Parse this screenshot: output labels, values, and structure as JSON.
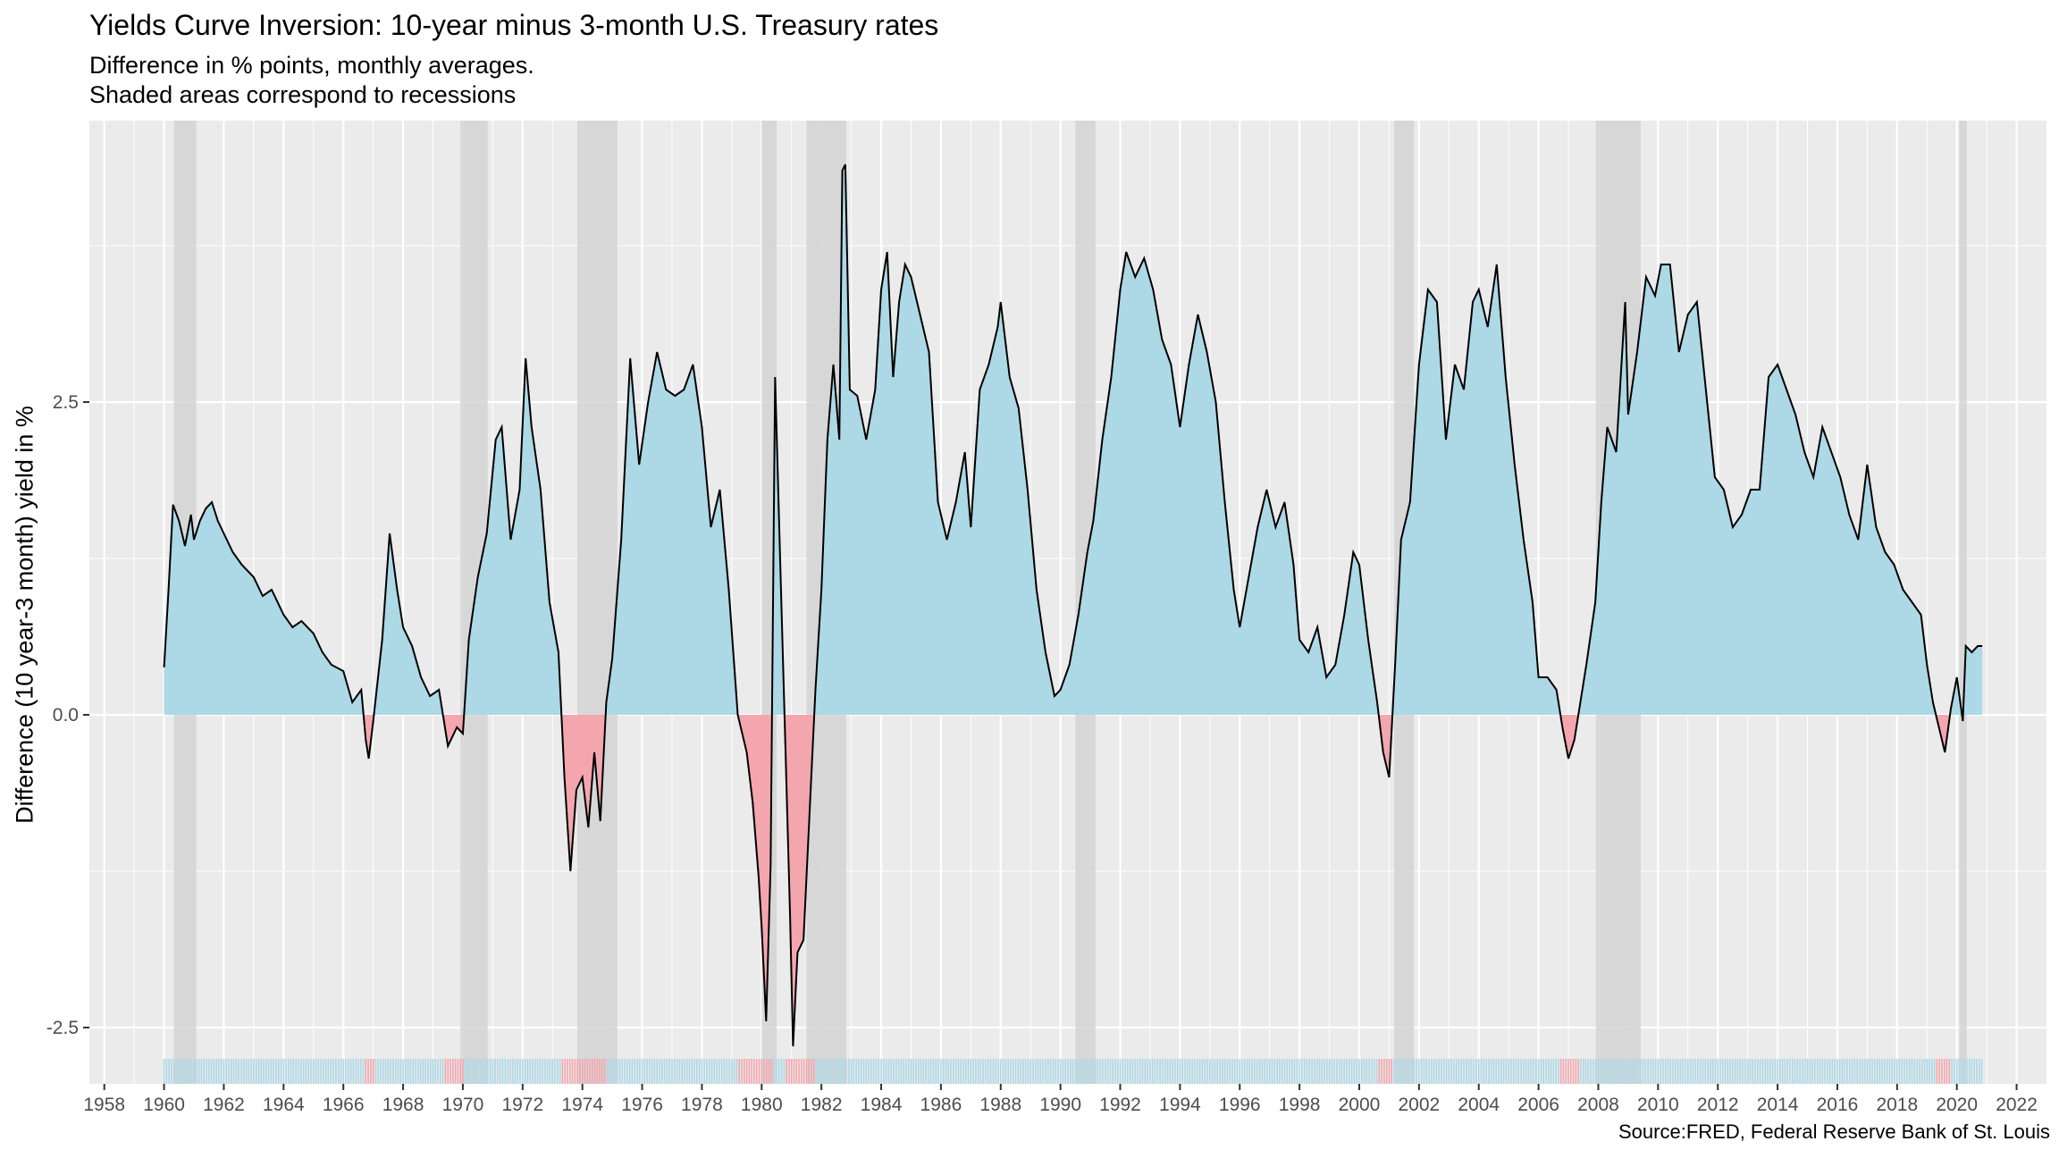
{
  "chart_data": {
    "type": "area",
    "title": "Yields Curve Inversion: 10-year minus 3-month U.S. Treasury rates",
    "subtitle": [
      "Difference in % points, monthly averages.",
      "Shaded areas correspond to recessions"
    ],
    "xlabel": "",
    "ylabel": "Difference (10 year-3 month) yield in %",
    "caption": "Source:FRED, Federal Reserve Bank of St. Louis",
    "xlim": [
      1957.5,
      2023.0
    ],
    "ylim": [
      -2.95,
      4.75
    ],
    "x_ticks": [
      1958,
      1960,
      1962,
      1964,
      1966,
      1968,
      1970,
      1972,
      1974,
      1976,
      1978,
      1980,
      1982,
      1984,
      1986,
      1988,
      1990,
      1992,
      1994,
      1996,
      1998,
      2000,
      2002,
      2004,
      2006,
      2008,
      2010,
      2012,
      2014,
      2016,
      2018,
      2020,
      2022
    ],
    "y_ticks": [
      -2.5,
      0.0,
      2.5
    ],
    "y_tick_labels": [
      "-2.5",
      "0.0",
      "2.5"
    ],
    "grid": true,
    "colors": {
      "panel": "#ebebeb",
      "grid": "#ffffff",
      "positive_fill": "#add8e6",
      "negative_fill": "#f4a6ae",
      "recession": "#d3d3d3",
      "line": "#000000"
    },
    "recessions": [
      [
        1960.33,
        1961.08
      ],
      [
        1969.92,
        1970.83
      ],
      [
        1973.83,
        1975.17
      ],
      [
        1980.0,
        1980.5
      ],
      [
        1981.5,
        1982.83
      ],
      [
        1990.5,
        1991.17
      ],
      [
        2001.17,
        2001.83
      ],
      [
        2007.92,
        2009.42
      ],
      [
        2020.08,
        2020.33
      ]
    ],
    "series": [
      {
        "values": [
          [
            1960.0,
            0.38
          ],
          [
            1960.15,
            1.0
          ],
          [
            1960.3,
            1.68
          ],
          [
            1960.5,
            1.55
          ],
          [
            1960.7,
            1.35
          ],
          [
            1960.9,
            1.6
          ],
          [
            1961.0,
            1.4
          ],
          [
            1961.2,
            1.55
          ],
          [
            1961.4,
            1.65
          ],
          [
            1961.6,
            1.7
          ],
          [
            1961.8,
            1.55
          ],
          [
            1962.0,
            1.45
          ],
          [
            1962.3,
            1.3
          ],
          [
            1962.6,
            1.2
          ],
          [
            1963.0,
            1.1
          ],
          [
            1963.3,
            0.95
          ],
          [
            1963.6,
            1.0
          ],
          [
            1964.0,
            0.8
          ],
          [
            1964.3,
            0.7
          ],
          [
            1964.6,
            0.75
          ],
          [
            1965.0,
            0.65
          ],
          [
            1965.3,
            0.5
          ],
          [
            1965.6,
            0.4
          ],
          [
            1966.0,
            0.35
          ],
          [
            1966.3,
            0.1
          ],
          [
            1966.6,
            0.2
          ],
          [
            1966.75,
            -0.2
          ],
          [
            1966.85,
            -0.35
          ],
          [
            1967.0,
            -0.05
          ],
          [
            1967.3,
            0.6
          ],
          [
            1967.55,
            1.45
          ],
          [
            1967.8,
            1.0
          ],
          [
            1968.0,
            0.7
          ],
          [
            1968.3,
            0.55
          ],
          [
            1968.6,
            0.3
          ],
          [
            1968.9,
            0.15
          ],
          [
            1969.2,
            0.2
          ],
          [
            1969.5,
            -0.25
          ],
          [
            1969.8,
            -0.1
          ],
          [
            1970.0,
            -0.15
          ],
          [
            1970.2,
            0.6
          ],
          [
            1970.5,
            1.1
          ],
          [
            1970.8,
            1.45
          ],
          [
            1971.1,
            2.2
          ],
          [
            1971.3,
            2.3
          ],
          [
            1971.6,
            1.4
          ],
          [
            1971.9,
            1.8
          ],
          [
            1972.1,
            2.85
          ],
          [
            1972.3,
            2.3
          ],
          [
            1972.6,
            1.8
          ],
          [
            1972.9,
            0.9
          ],
          [
            1973.2,
            0.5
          ],
          [
            1973.4,
            -0.5
          ],
          [
            1973.6,
            -1.25
          ],
          [
            1973.8,
            -0.6
          ],
          [
            1974.0,
            -0.5
          ],
          [
            1974.2,
            -0.9
          ],
          [
            1974.4,
            -0.3
          ],
          [
            1974.6,
            -0.85
          ],
          [
            1974.8,
            0.1
          ],
          [
            1975.0,
            0.45
          ],
          [
            1975.3,
            1.4
          ],
          [
            1975.6,
            2.85
          ],
          [
            1975.9,
            2.0
          ],
          [
            1976.2,
            2.5
          ],
          [
            1976.5,
            2.9
          ],
          [
            1976.8,
            2.6
          ],
          [
            1977.1,
            2.55
          ],
          [
            1977.4,
            2.6
          ],
          [
            1977.7,
            2.8
          ],
          [
            1978.0,
            2.3
          ],
          [
            1978.3,
            1.5
          ],
          [
            1978.6,
            1.8
          ],
          [
            1978.9,
            1.0
          ],
          [
            1979.2,
            0.0
          ],
          [
            1979.5,
            -0.3
          ],
          [
            1979.7,
            -0.7
          ],
          [
            1979.9,
            -1.3
          ],
          [
            1980.0,
            -1.7
          ],
          [
            1980.15,
            -2.45
          ],
          [
            1980.3,
            -1.2
          ],
          [
            1980.45,
            2.7
          ],
          [
            1980.6,
            1.4
          ],
          [
            1980.8,
            -0.3
          ],
          [
            1980.95,
            -1.6
          ],
          [
            1981.05,
            -2.65
          ],
          [
            1981.2,
            -1.9
          ],
          [
            1981.4,
            -1.8
          ],
          [
            1981.6,
            -0.8
          ],
          [
            1981.8,
            0.2
          ],
          [
            1982.0,
            1.0
          ],
          [
            1982.2,
            2.2
          ],
          [
            1982.4,
            2.8
          ],
          [
            1982.6,
            2.2
          ],
          [
            1982.7,
            4.35
          ],
          [
            1982.8,
            4.4
          ],
          [
            1982.95,
            2.6
          ],
          [
            1983.2,
            2.55
          ],
          [
            1983.5,
            2.2
          ],
          [
            1983.8,
            2.6
          ],
          [
            1984.0,
            3.4
          ],
          [
            1984.2,
            3.7
          ],
          [
            1984.4,
            2.7
          ],
          [
            1984.6,
            3.3
          ],
          [
            1984.8,
            3.6
          ],
          [
            1985.0,
            3.5
          ],
          [
            1985.3,
            3.2
          ],
          [
            1985.6,
            2.9
          ],
          [
            1985.9,
            1.7
          ],
          [
            1986.2,
            1.4
          ],
          [
            1986.5,
            1.7
          ],
          [
            1986.8,
            2.1
          ],
          [
            1987.0,
            1.5
          ],
          [
            1987.3,
            2.6
          ],
          [
            1987.6,
            2.8
          ],
          [
            1987.9,
            3.1
          ],
          [
            1988.0,
            3.3
          ],
          [
            1988.3,
            2.7
          ],
          [
            1988.6,
            2.45
          ],
          [
            1988.9,
            1.8
          ],
          [
            1989.2,
            1.0
          ],
          [
            1989.5,
            0.5
          ],
          [
            1989.8,
            0.15
          ],
          [
            1990.0,
            0.2
          ],
          [
            1990.3,
            0.4
          ],
          [
            1990.6,
            0.8
          ],
          [
            1990.9,
            1.3
          ],
          [
            1991.1,
            1.55
          ],
          [
            1991.4,
            2.2
          ],
          [
            1991.7,
            2.7
          ],
          [
            1992.0,
            3.4
          ],
          [
            1992.2,
            3.7
          ],
          [
            1992.5,
            3.5
          ],
          [
            1992.8,
            3.65
          ],
          [
            1993.1,
            3.4
          ],
          [
            1993.4,
            3.0
          ],
          [
            1993.7,
            2.8
          ],
          [
            1994.0,
            2.3
          ],
          [
            1994.3,
            2.8
          ],
          [
            1994.6,
            3.2
          ],
          [
            1994.9,
            2.9
          ],
          [
            1995.2,
            2.5
          ],
          [
            1995.5,
            1.7
          ],
          [
            1995.8,
            1.0
          ],
          [
            1996.0,
            0.7
          ],
          [
            1996.3,
            1.1
          ],
          [
            1996.6,
            1.5
          ],
          [
            1996.9,
            1.8
          ],
          [
            1997.2,
            1.5
          ],
          [
            1997.5,
            1.7
          ],
          [
            1997.8,
            1.2
          ],
          [
            1998.0,
            0.6
          ],
          [
            1998.3,
            0.5
          ],
          [
            1998.6,
            0.7
          ],
          [
            1998.9,
            0.3
          ],
          [
            1999.2,
            0.4
          ],
          [
            1999.5,
            0.8
          ],
          [
            1999.8,
            1.3
          ],
          [
            2000.0,
            1.2
          ],
          [
            2000.3,
            0.6
          ],
          [
            2000.6,
            0.1
          ],
          [
            2000.8,
            -0.3
          ],
          [
            2001.0,
            -0.5
          ],
          [
            2001.2,
            0.4
          ],
          [
            2001.4,
            1.4
          ],
          [
            2001.7,
            1.7
          ],
          [
            2002.0,
            2.8
          ],
          [
            2002.3,
            3.4
          ],
          [
            2002.6,
            3.3
          ],
          [
            2002.9,
            2.2
          ],
          [
            2003.2,
            2.8
          ],
          [
            2003.5,
            2.6
          ],
          [
            2003.8,
            3.3
          ],
          [
            2004.0,
            3.4
          ],
          [
            2004.3,
            3.1
          ],
          [
            2004.6,
            3.6
          ],
          [
            2004.9,
            2.7
          ],
          [
            2005.2,
            2.0
          ],
          [
            2005.5,
            1.4
          ],
          [
            2005.8,
            0.9
          ],
          [
            2006.0,
            0.3
          ],
          [
            2006.3,
            0.3
          ],
          [
            2006.6,
            0.2
          ],
          [
            2006.8,
            -0.1
          ],
          [
            2007.0,
            -0.35
          ],
          [
            2007.2,
            -0.2
          ],
          [
            2007.4,
            0.1
          ],
          [
            2007.6,
            0.4
          ],
          [
            2007.9,
            0.9
          ],
          [
            2008.1,
            1.7
          ],
          [
            2008.3,
            2.3
          ],
          [
            2008.6,
            2.1
          ],
          [
            2008.9,
            3.3
          ],
          [
            2009.0,
            2.4
          ],
          [
            2009.3,
            2.9
          ],
          [
            2009.6,
            3.5
          ],
          [
            2009.9,
            3.35
          ],
          [
            2010.1,
            3.6
          ],
          [
            2010.4,
            3.6
          ],
          [
            2010.7,
            2.9
          ],
          [
            2011.0,
            3.2
          ],
          [
            2011.3,
            3.3
          ],
          [
            2011.6,
            2.6
          ],
          [
            2011.9,
            1.9
          ],
          [
            2012.2,
            1.8
          ],
          [
            2012.5,
            1.5
          ],
          [
            2012.8,
            1.6
          ],
          [
            2013.1,
            1.8
          ],
          [
            2013.4,
            1.8
          ],
          [
            2013.7,
            2.7
          ],
          [
            2014.0,
            2.8
          ],
          [
            2014.3,
            2.6
          ],
          [
            2014.6,
            2.4
          ],
          [
            2014.9,
            2.1
          ],
          [
            2015.2,
            1.9
          ],
          [
            2015.5,
            2.3
          ],
          [
            2015.8,
            2.1
          ],
          [
            2016.1,
            1.9
          ],
          [
            2016.4,
            1.6
          ],
          [
            2016.7,
            1.4
          ],
          [
            2017.0,
            2.0
          ],
          [
            2017.3,
            1.5
          ],
          [
            2017.6,
            1.3
          ],
          [
            2017.9,
            1.2
          ],
          [
            2018.2,
            1.0
          ],
          [
            2018.5,
            0.9
          ],
          [
            2018.8,
            0.8
          ],
          [
            2019.0,
            0.4
          ],
          [
            2019.2,
            0.1
          ],
          [
            2019.4,
            -0.1
          ],
          [
            2019.6,
            -0.3
          ],
          [
            2019.8,
            0.05
          ],
          [
            2020.0,
            0.3
          ],
          [
            2020.2,
            -0.05
          ],
          [
            2020.3,
            0.55
          ],
          [
            2020.5,
            0.5
          ],
          [
            2020.7,
            0.55
          ],
          [
            2020.85,
            0.55
          ]
        ]
      }
    ]
  }
}
